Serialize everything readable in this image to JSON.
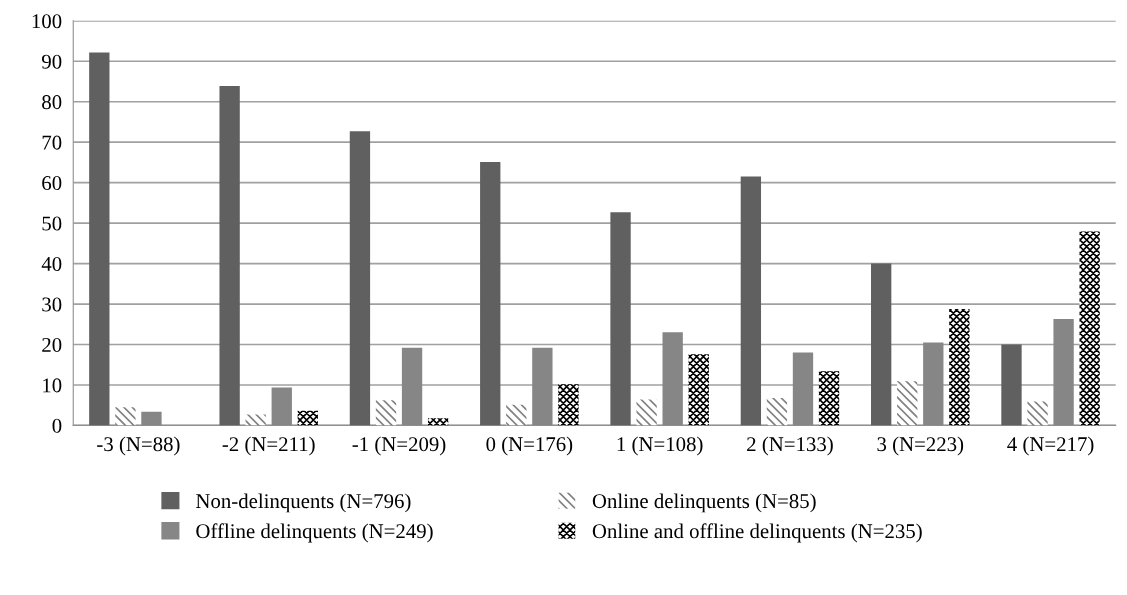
{
  "chart_data": {
    "type": "bar",
    "categories": [
      "-3 (N=88)",
      "-2 (N=211)",
      "-1 (N=209)",
      "0 (N=176)",
      "1 (N=108)",
      "2 (N=133)",
      "3 (N=223)",
      "4 (N=217)"
    ],
    "series": [
      {
        "name": "Non-delinquents (N=796)",
        "color": "#606060",
        "values": [
          92.2,
          83.9,
          72.7,
          65.1,
          52.7,
          61.5,
          40.0,
          20.0
        ]
      },
      {
        "name": "Online delinquents (N=85)",
        "color": "#808080",
        "values": [
          4.5,
          2.7,
          6.2,
          5.1,
          6.4,
          6.8,
          10.9,
          5.9
        ]
      },
      {
        "name": "Offline delinquents (N=249)",
        "color": "#868686",
        "values": [
          3.4,
          9.4,
          19.2,
          19.2,
          23.0,
          18.0,
          20.5,
          26.3
        ]
      },
      {
        "name": "Online and offline delinquents (N=235)",
        "color": "#000000",
        "values": [
          0,
          3.6,
          1.8,
          10.2,
          17.6,
          13.4,
          28.8,
          47.9
        ]
      }
    ],
    "ylim": [
      0,
      100
    ],
    "yticks": [
      0,
      10,
      20,
      30,
      40,
      50,
      60,
      70,
      80,
      90,
      100
    ],
    "grid": "y",
    "legend": "bottom"
  }
}
